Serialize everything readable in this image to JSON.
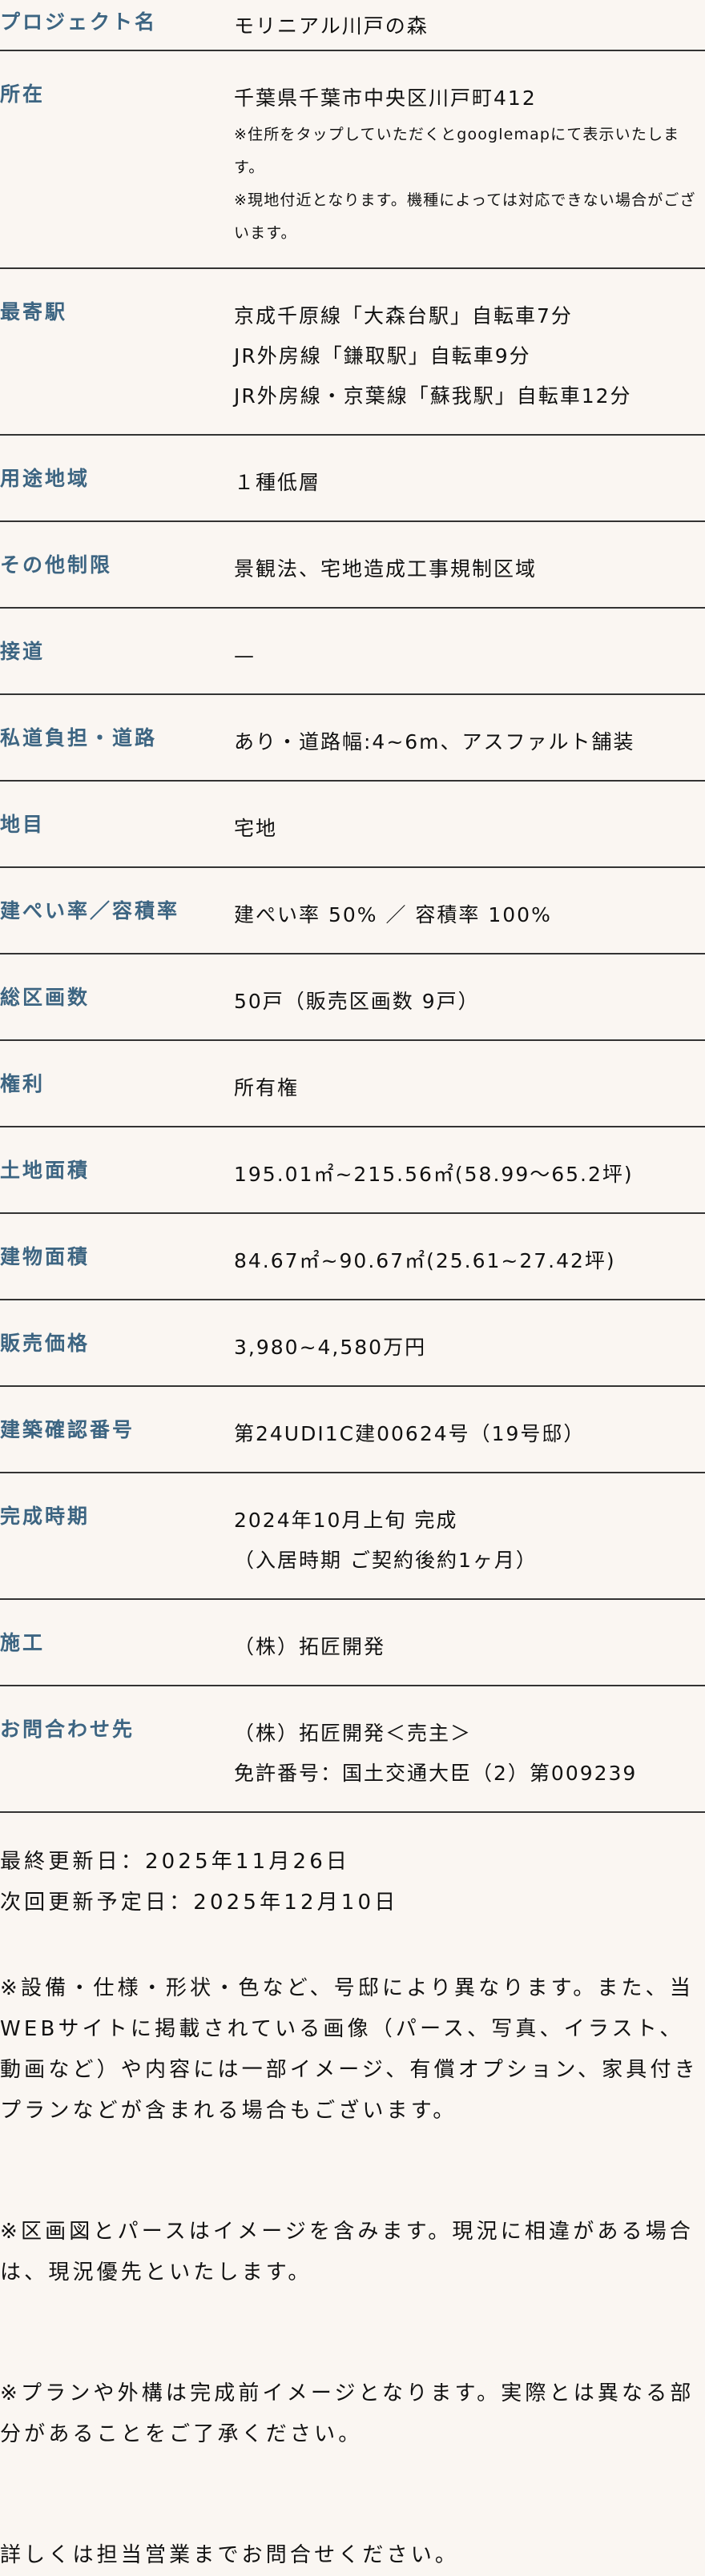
{
  "colors": {
    "label": "#3d6582",
    "background": "#faf6f2",
    "divider": "#333333"
  },
  "rows": [
    {
      "label": "プロジェクト名",
      "lines": [
        "モリニアル川戸の森"
      ]
    },
    {
      "label": "所在",
      "lines": [
        "千葉県千葉市中央区川戸町412"
      ],
      "notes": [
        "※住所をタップしていただくとgooglemapにて表示いたします。",
        "※現地付近となります。機種によっては対応できない場合がございます。"
      ]
    },
    {
      "label": "最寄駅",
      "lines": [
        "京成千原線「大森台駅」自転車7分",
        "JR外房線「鎌取駅」自転車9分",
        "JR外房線・京葉線「蘇我駅」自転車12分"
      ]
    },
    {
      "label": "用途地域",
      "lines": [
        "１種低層"
      ]
    },
    {
      "label": "その他制限",
      "lines": [
        "景観法、宅地造成工事規制区域"
      ]
    },
    {
      "label": "接道",
      "lines": [
        "—"
      ]
    },
    {
      "label": "私道負担・道路",
      "lines": [
        "あり・道路幅:4~6m、アスファルト舗装"
      ]
    },
    {
      "label": "地目",
      "lines": [
        "宅地"
      ]
    },
    {
      "label": "建ぺい率／容積率",
      "lines": [
        "建ぺい率 50% ／ 容積率 100%"
      ]
    },
    {
      "label": "総区画数",
      "lines": [
        "50戸（販売区画数 9戸）"
      ]
    },
    {
      "label": "権利",
      "lines": [
        "所有権"
      ]
    },
    {
      "label": "土地面積",
      "lines": [
        "195.01㎡~215.56㎡(58.99～65.2坪)"
      ]
    },
    {
      "label": "建物面積",
      "lines": [
        "84.67㎡~90.67㎡(25.61~27.42坪)"
      ]
    },
    {
      "label": "販売価格",
      "lines": [
        "3,980~4,580万円"
      ]
    },
    {
      "label": "建築確認番号",
      "lines": [
        "第24UDI1C建00624号（19号邸）"
      ]
    },
    {
      "label": "完成時期",
      "lines": [
        "2024年10月上旬 完成",
        "（入居時期 ご契約後約1ヶ月）"
      ]
    },
    {
      "label": "施工",
      "lines": [
        "（株）拓匠開発"
      ]
    },
    {
      "label": "お問合わせ先",
      "lines": [
        "（株）拓匠開発＜売主＞",
        "免許番号：国土交通大臣（2）第009239"
      ]
    }
  ],
  "footer": {
    "last_updated": "最終更新日：2025年11月26日",
    "next_update": "次回更新予定日：2025年12月10日",
    "notes": [
      "※設備・仕様・形状・色など、号邸により異なります。また、当WEBサイトに掲載されている画像（パース、写真、イラスト、動画など）や内容には一部イメージ、有償オプション、家具付きプランなどが含まれる場合もございます。",
      "※区画図とパースはイメージを含みます。現況に相違がある場合は、現況優先といたします。",
      "※プランや外構は完成前イメージとなります。実際とは異なる部分があることをご了承ください。",
      "詳しくは担当営業までお問合せください。"
    ]
  }
}
